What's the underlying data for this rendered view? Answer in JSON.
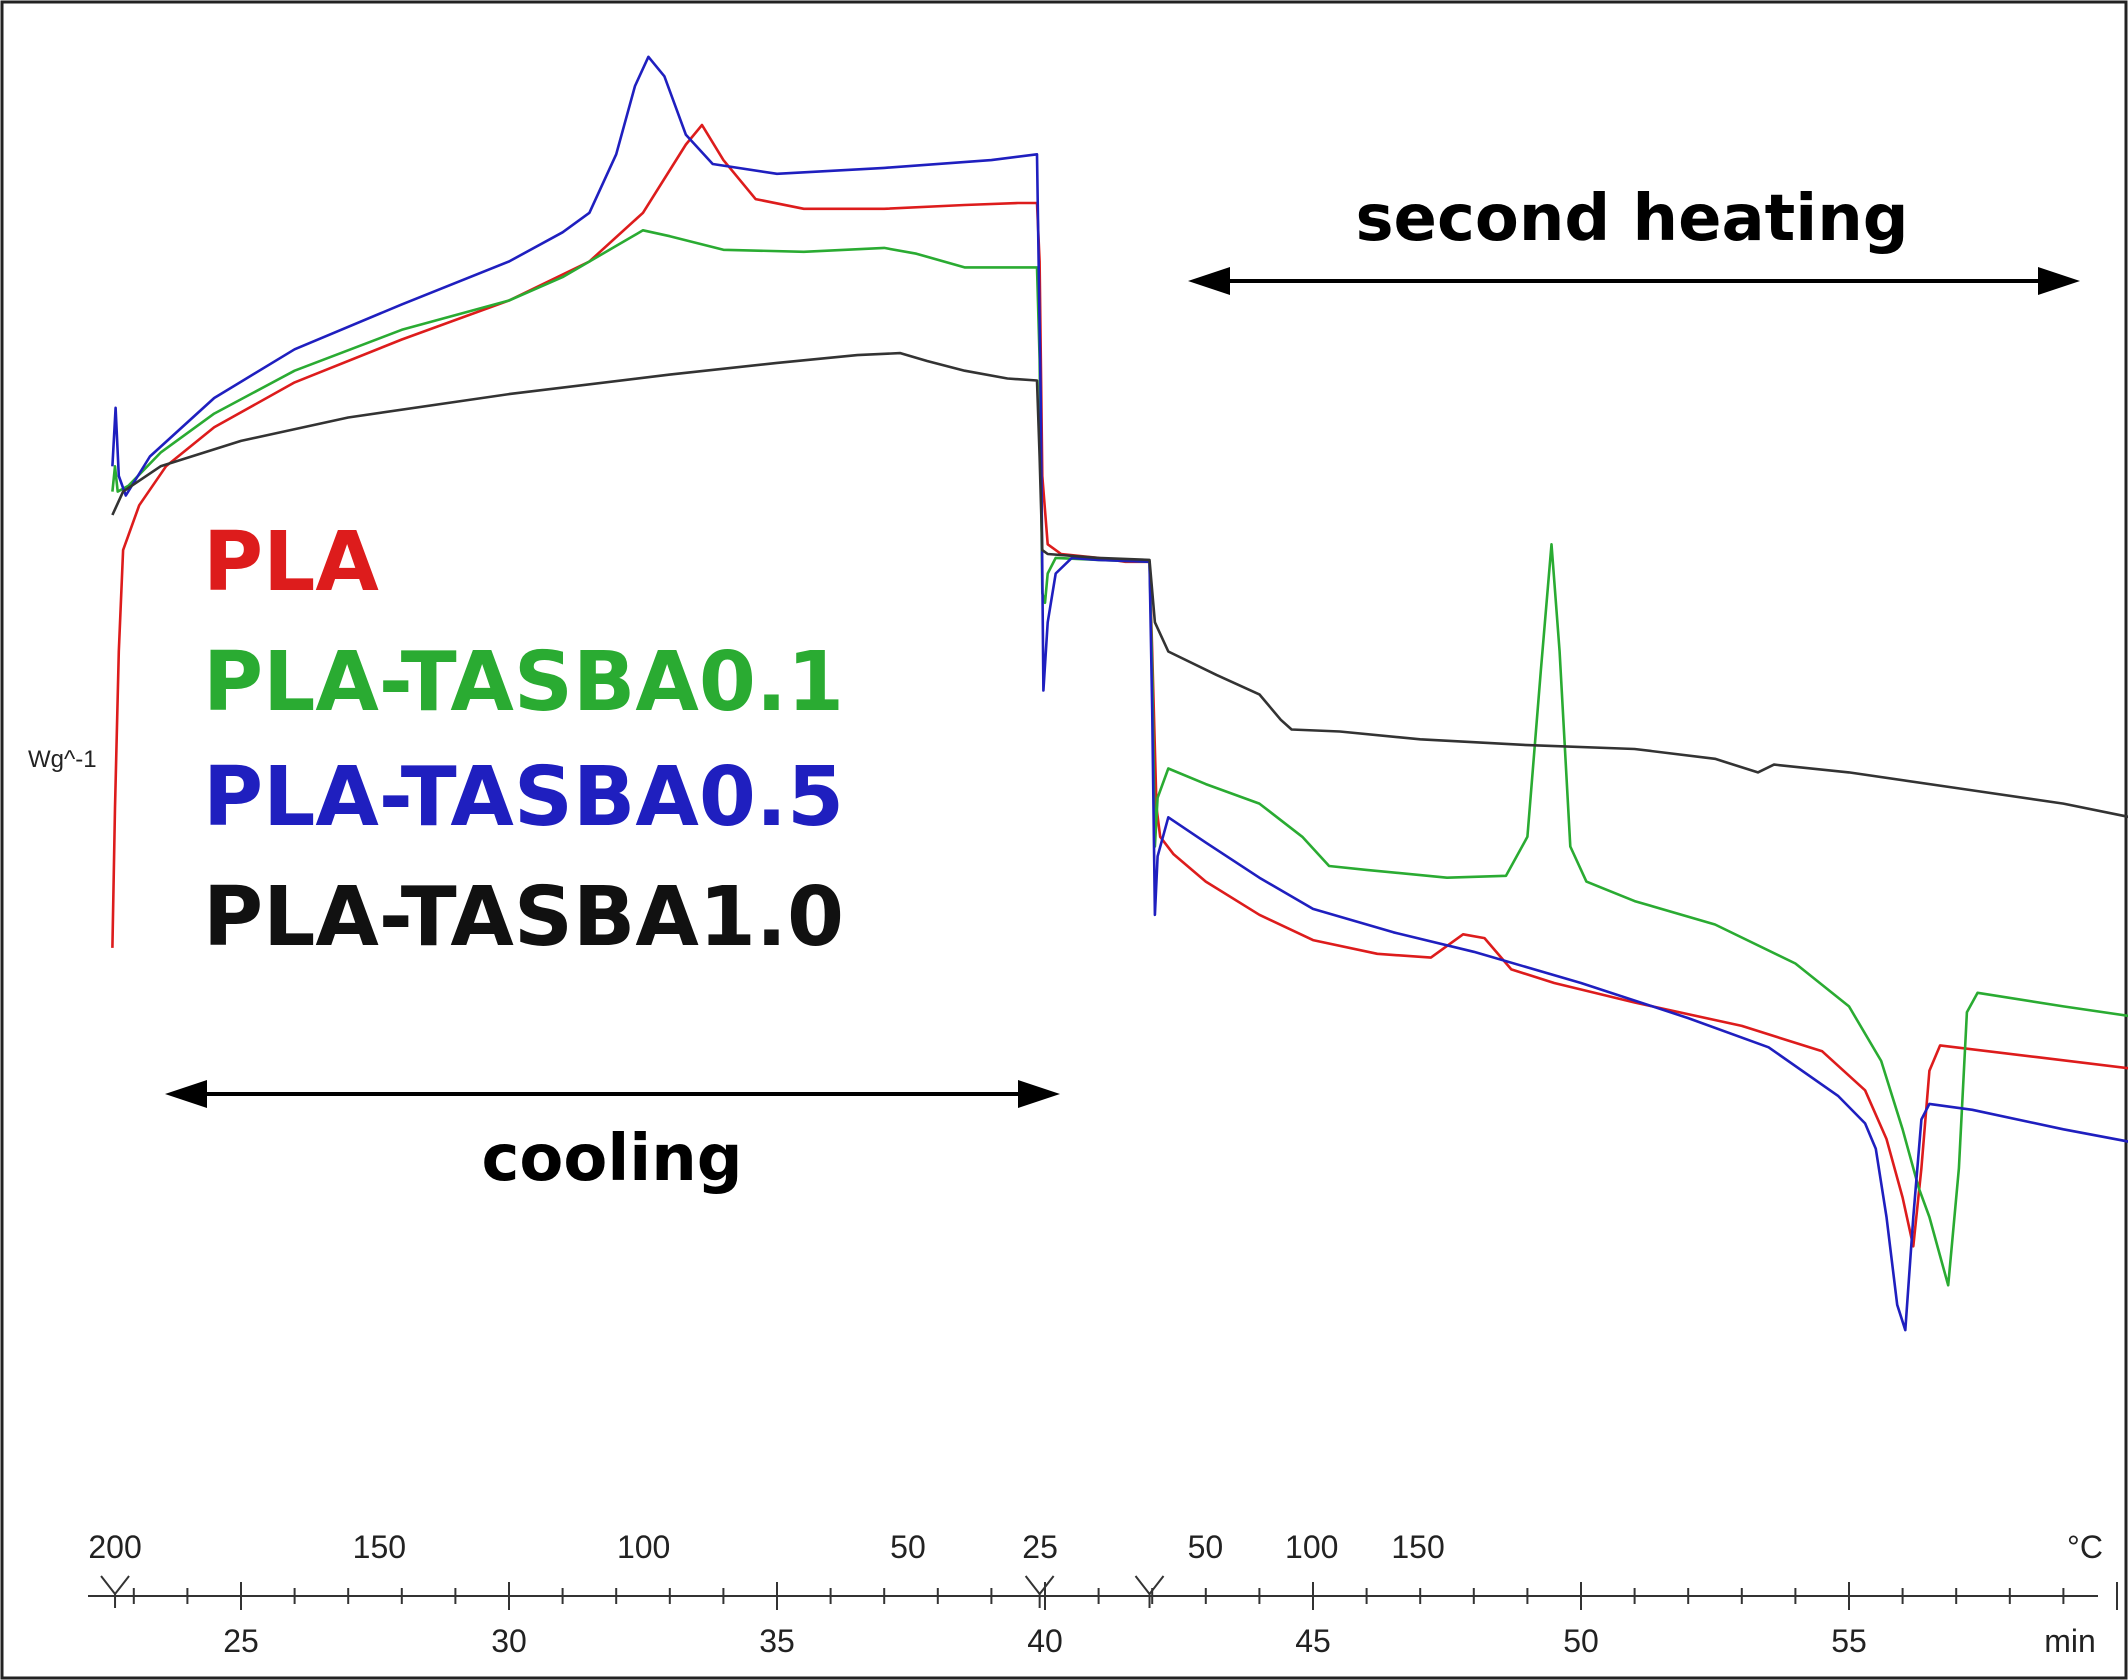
{
  "chart_data": {
    "type": "line",
    "ylabel": "Wg^-1",
    "x_axis_time": {
      "unit": "min",
      "ticks": [
        25,
        30,
        35,
        40,
        45,
        50,
        55
      ],
      "range": [
        22.6,
        61.5
      ]
    },
    "x_axis_temperature": {
      "unit": "°C",
      "segments": [
        {
          "name": "cooling",
          "ticks": [
            200,
            150,
            100,
            50,
            25
          ]
        },
        {
          "name": "second heating",
          "ticks": [
            25,
            50,
            100,
            150
          ]
        }
      ]
    },
    "annotations": {
      "cooling": "cooling",
      "second_heating": "second heating"
    },
    "series": [
      {
        "name": "PLA",
        "color": "#dd1c1c",
        "points": [
          [
            22.6,
            0.78
          ],
          [
            22.65,
            1.5
          ],
          [
            22.72,
            2.3
          ],
          [
            22.8,
            2.82
          ],
          [
            23.1,
            3.05
          ],
          [
            23.6,
            3.25
          ],
          [
            24.5,
            3.45
          ],
          [
            26,
            3.68
          ],
          [
            28,
            3.9
          ],
          [
            30,
            4.1
          ],
          [
            31.5,
            4.3
          ],
          [
            32.5,
            4.55
          ],
          [
            33.3,
            4.9
          ],
          [
            33.6,
            5.0
          ],
          [
            34,
            4.82
          ],
          [
            34.6,
            4.62
          ],
          [
            35.5,
            4.57
          ],
          [
            37,
            4.57
          ],
          [
            38.5,
            4.59
          ],
          [
            39.5,
            4.6
          ],
          [
            39.85,
            4.6
          ],
          [
            39.9,
            4.3
          ],
          [
            39.95,
            3.2
          ],
          [
            40.05,
            2.85
          ],
          [
            40.3,
            2.8
          ],
          [
            41,
            2.78
          ],
          [
            41.5,
            2.76
          ],
          [
            41.95,
            2.76
          ],
          [
            42.0,
            2.3
          ],
          [
            42.08,
            1.5
          ],
          [
            42.15,
            1.35
          ],
          [
            42.4,
            1.26
          ],
          [
            43,
            1.12
          ],
          [
            44,
            0.95
          ],
          [
            45,
            0.82
          ],
          [
            46.2,
            0.75
          ],
          [
            47.2,
            0.73
          ],
          [
            47.8,
            0.85
          ],
          [
            48.2,
            0.83
          ],
          [
            48.7,
            0.67
          ],
          [
            49.5,
            0.6
          ],
          [
            51,
            0.5
          ],
          [
            53,
            0.38
          ],
          [
            54.5,
            0.25
          ],
          [
            55.3,
            0.05
          ],
          [
            55.7,
            -0.2
          ],
          [
            56,
            -0.5
          ],
          [
            56.2,
            -0.75
          ],
          [
            56.35,
            -0.35
          ],
          [
            56.5,
            0.15
          ],
          [
            56.7,
            0.28
          ],
          [
            58.5,
            0.22
          ],
          [
            61.5,
            0.12
          ]
        ]
      },
      {
        "name": "PLA-TASBA0.1",
        "color": "#2aab32",
        "points": [
          [
            22.6,
            3.12
          ],
          [
            22.65,
            3.25
          ],
          [
            22.7,
            3.12
          ],
          [
            22.9,
            3.15
          ],
          [
            23.5,
            3.32
          ],
          [
            24.5,
            3.52
          ],
          [
            26,
            3.74
          ],
          [
            28,
            3.95
          ],
          [
            30,
            4.1
          ],
          [
            31,
            4.22
          ],
          [
            32,
            4.38
          ],
          [
            32.5,
            4.46
          ],
          [
            33,
            4.43
          ],
          [
            34,
            4.36
          ],
          [
            35.5,
            4.35
          ],
          [
            37,
            4.37
          ],
          [
            37.6,
            4.34
          ],
          [
            38.5,
            4.27
          ],
          [
            39.85,
            4.27
          ],
          [
            39.9,
            3.8
          ],
          [
            39.95,
            2.6
          ],
          [
            40.0,
            2.55
          ],
          [
            40.05,
            2.7
          ],
          [
            40.2,
            2.78
          ],
          [
            41,
            2.77
          ],
          [
            41.95,
            2.76
          ],
          [
            42.0,
            2.2
          ],
          [
            42.05,
            1.3
          ],
          [
            42.1,
            1.55
          ],
          [
            42.3,
            1.7
          ],
          [
            43,
            1.62
          ],
          [
            44,
            1.52
          ],
          [
            44.8,
            1.35
          ],
          [
            45.3,
            1.2
          ],
          [
            46,
            1.18
          ],
          [
            47.5,
            1.14
          ],
          [
            48.6,
            1.15
          ],
          [
            49.0,
            1.35
          ],
          [
            49.25,
            2.2
          ],
          [
            49.45,
            2.85
          ],
          [
            49.6,
            2.3
          ],
          [
            49.8,
            1.3
          ],
          [
            50.1,
            1.12
          ],
          [
            51,
            1.02
          ],
          [
            52.5,
            0.9
          ],
          [
            54,
            0.7
          ],
          [
            55,
            0.48
          ],
          [
            55.6,
            0.2
          ],
          [
            56,
            -0.15
          ],
          [
            56.3,
            -0.45
          ],
          [
            56.5,
            -0.6
          ],
          [
            56.7,
            -0.8
          ],
          [
            56.85,
            -0.95
          ],
          [
            57.05,
            -0.35
          ],
          [
            57.2,
            0.45
          ],
          [
            57.4,
            0.55
          ],
          [
            59,
            0.48
          ],
          [
            61.5,
            0.38
          ]
        ]
      },
      {
        "name": "PLA-TASBA0.5",
        "color": "#1f1fbf",
        "points": [
          [
            22.6,
            3.25
          ],
          [
            22.66,
            3.55
          ],
          [
            22.72,
            3.2
          ],
          [
            22.85,
            3.1
          ],
          [
            23.3,
            3.3
          ],
          [
            24.5,
            3.6
          ],
          [
            26,
            3.85
          ],
          [
            28,
            4.08
          ],
          [
            30,
            4.3
          ],
          [
            31,
            4.45
          ],
          [
            31.5,
            4.55
          ],
          [
            32,
            4.85
          ],
          [
            32.35,
            5.2
          ],
          [
            32.6,
            5.35
          ],
          [
            32.9,
            5.25
          ],
          [
            33.3,
            4.95
          ],
          [
            33.8,
            4.8
          ],
          [
            35,
            4.75
          ],
          [
            37,
            4.78
          ],
          [
            39,
            4.82
          ],
          [
            39.85,
            4.85
          ],
          [
            39.92,
            3.6
          ],
          [
            39.97,
            2.1
          ],
          [
            40.05,
            2.45
          ],
          [
            40.2,
            2.7
          ],
          [
            40.5,
            2.78
          ],
          [
            41,
            2.77
          ],
          [
            41.95,
            2.76
          ],
          [
            42.0,
            2.0
          ],
          [
            42.05,
            0.95
          ],
          [
            42.1,
            1.25
          ],
          [
            42.3,
            1.45
          ],
          [
            43,
            1.32
          ],
          [
            44,
            1.14
          ],
          [
            45,
            0.98
          ],
          [
            46.5,
            0.86
          ],
          [
            48,
            0.76
          ],
          [
            50,
            0.6
          ],
          [
            52,
            0.42
          ],
          [
            53.5,
            0.27
          ],
          [
            54.8,
            0.02
          ],
          [
            55.3,
            -0.12
          ],
          [
            55.5,
            -0.25
          ],
          [
            55.7,
            -0.6
          ],
          [
            55.9,
            -1.05
          ],
          [
            56.05,
            -1.18
          ],
          [
            56.2,
            -0.6
          ],
          [
            56.35,
            -0.1
          ],
          [
            56.5,
            -0.02
          ],
          [
            57.3,
            -0.05
          ],
          [
            59,
            -0.15
          ],
          [
            61.5,
            -0.28
          ]
        ]
      },
      {
        "name": "PLA-TASBA1.0",
        "color": "#333333",
        "points": [
          [
            22.6,
            3.0
          ],
          [
            22.8,
            3.12
          ],
          [
            23.5,
            3.25
          ],
          [
            25,
            3.38
          ],
          [
            27,
            3.5
          ],
          [
            30,
            3.62
          ],
          [
            33,
            3.72
          ],
          [
            35,
            3.78
          ],
          [
            36.5,
            3.82
          ],
          [
            37.3,
            3.83
          ],
          [
            37.8,
            3.79
          ],
          [
            38.5,
            3.74
          ],
          [
            39.3,
            3.7
          ],
          [
            39.85,
            3.69
          ],
          [
            39.9,
            3.3
          ],
          [
            39.95,
            2.82
          ],
          [
            40.05,
            2.8
          ],
          [
            41,
            2.78
          ],
          [
            41.95,
            2.77
          ],
          [
            42.05,
            2.45
          ],
          [
            42.3,
            2.3
          ],
          [
            43.2,
            2.18
          ],
          [
            44,
            2.08
          ],
          [
            44.4,
            1.95
          ],
          [
            44.6,
            1.9
          ],
          [
            45.5,
            1.89
          ],
          [
            47,
            1.85
          ],
          [
            49,
            1.82
          ],
          [
            51,
            1.8
          ],
          [
            52.5,
            1.75
          ],
          [
            53.3,
            1.68
          ],
          [
            53.6,
            1.72
          ],
          [
            55,
            1.68
          ],
          [
            57,
            1.6
          ],
          [
            59,
            1.52
          ],
          [
            61.5,
            1.38
          ]
        ]
      }
    ]
  }
}
